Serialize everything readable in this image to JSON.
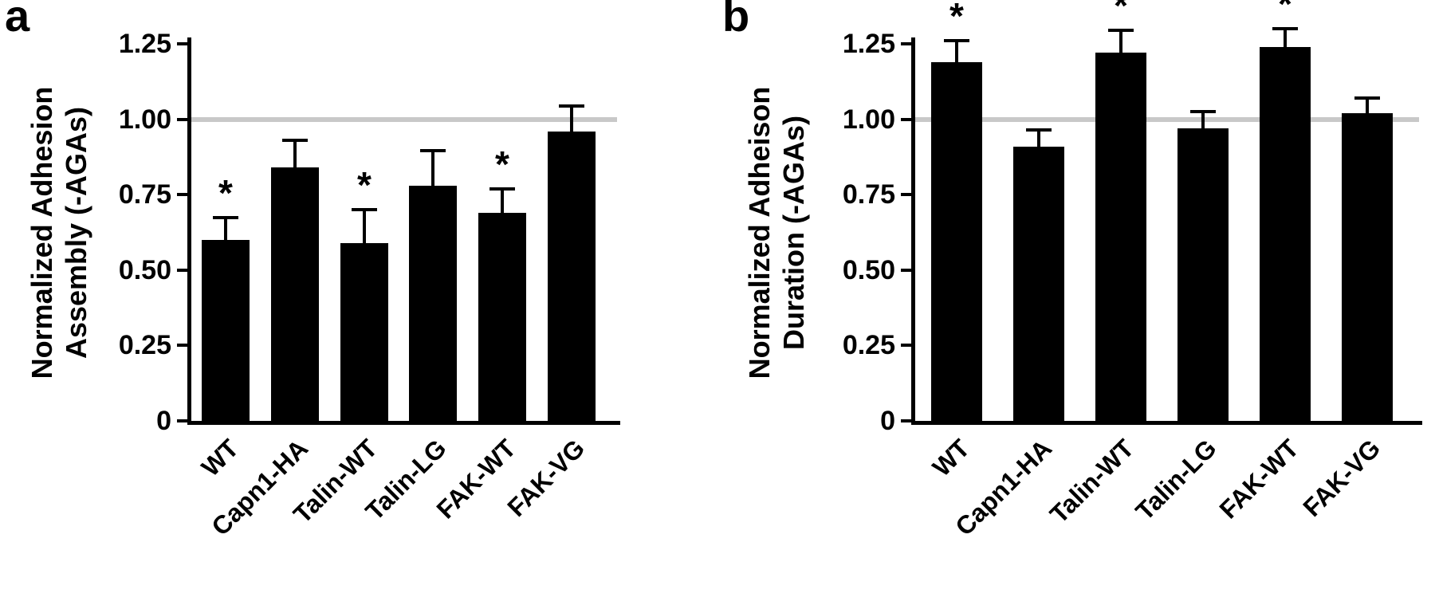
{
  "figure": {
    "background": "#ffffff"
  },
  "chart_data": [
    {
      "type": "bar",
      "panel_label": "a",
      "title": "",
      "xlabel": "",
      "ylabel": "Normalized Adhesion Assembly (-AGAs)",
      "ylabel_line1": "Normalized Adhesion",
      "ylabel_line2": "Assembly (-AGAs)",
      "categories": [
        "WT",
        "Capn1-HA",
        "Talin-WT",
        "Talin-LG",
        "FAK-WT",
        "FAK-VG"
      ],
      "values": [
        0.6,
        0.84,
        0.59,
        0.78,
        0.69,
        0.96
      ],
      "errors": [
        0.075,
        0.09,
        0.11,
        0.115,
        0.08,
        0.085
      ],
      "significant": [
        true,
        false,
        true,
        false,
        true,
        false
      ],
      "significance_marker": "*",
      "ylim": [
        0,
        1.25
      ],
      "yticks": [
        0,
        0.25,
        0.5,
        0.75,
        1.0,
        1.25
      ],
      "ytick_labels": [
        "0",
        "0.25",
        "0.50",
        "0.75",
        "1.00",
        "1.25"
      ],
      "reference_line": 1.0,
      "bar_color": "#000000",
      "error_color": "#000000",
      "reference_color": "#c8c8c8",
      "grid": false,
      "legend": false
    },
    {
      "type": "bar",
      "panel_label": "b",
      "title": "",
      "xlabel": "",
      "ylabel": "Normalized Adheison Duration (-AGAs)",
      "ylabel_line1": "Normalized Adheison",
      "ylabel_line2": "Duration (-AGAs)",
      "categories": [
        "WT",
        "Capn1-HA",
        "Talin-WT",
        "Talin-LG",
        "FAK-WT",
        "FAK-VG"
      ],
      "values": [
        1.19,
        0.91,
        1.22,
        0.97,
        1.24,
        1.02
      ],
      "errors": [
        0.07,
        0.055,
        0.075,
        0.055,
        0.06,
        0.05
      ],
      "significant": [
        true,
        false,
        true,
        false,
        true,
        false
      ],
      "significance_marker": "*",
      "ylim": [
        0,
        1.25
      ],
      "yticks": [
        0,
        0.25,
        0.5,
        0.75,
        1.0,
        1.25
      ],
      "ytick_labels": [
        "0",
        "0.25",
        "0.50",
        "0.75",
        "1.00",
        "1.25"
      ],
      "reference_line": 1.0,
      "bar_color": "#000000",
      "error_color": "#000000",
      "reference_color": "#c8c8c8",
      "grid": false,
      "legend": false
    }
  ]
}
